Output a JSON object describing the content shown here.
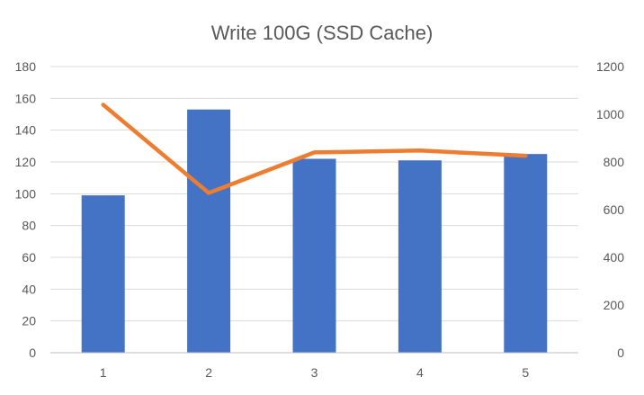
{
  "chart_data": {
    "type": "bar",
    "title": "Write 100G (SSD Cache)",
    "xlabel": "",
    "ylabel": "",
    "categories": [
      "1",
      "2",
      "3",
      "4",
      "5"
    ],
    "series": [
      {
        "type": "bar",
        "axis": "left",
        "color": "#4472C4",
        "values": [
          99,
          153,
          122,
          121,
          125
        ]
      },
      {
        "type": "line",
        "axis": "right",
        "color": "#ED7D31",
        "values": [
          1040,
          670,
          840,
          848,
          826
        ]
      }
    ],
    "ylim": [
      0,
      180
    ],
    "y_ticks": [
      "0",
      "20",
      "40",
      "60",
      "80",
      "100",
      "120",
      "140",
      "160",
      "180"
    ],
    "y2lim": [
      0,
      1200
    ],
    "y2_ticks": [
      "0",
      "200",
      "400",
      "600",
      "800",
      "1000",
      "1200"
    ],
    "grid": true,
    "legend": "none"
  }
}
